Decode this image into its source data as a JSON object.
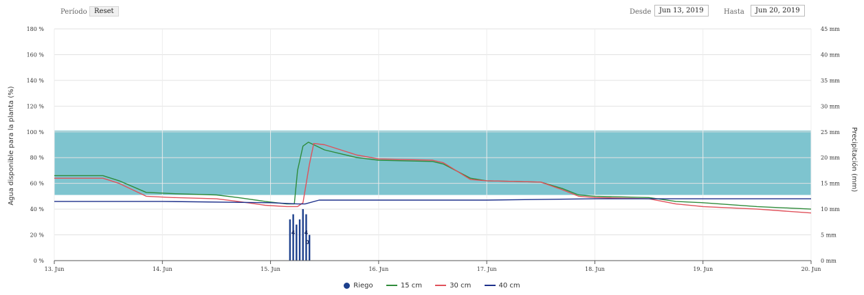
{
  "controls": {
    "period_label": "Período",
    "reset_label": "Reset",
    "from_label": "Desde",
    "from_value": "Jun 13, 2019",
    "to_label": "Hasta",
    "to_value": "Jun 20, 2019"
  },
  "chart_data": {
    "type": "line",
    "ylabel": "Agua disponible para la planta (%)",
    "y2label": "Precipitación (mm)",
    "ylim": [
      0,
      180
    ],
    "y2lim": [
      0,
      45
    ],
    "y_ticks": [
      "0 %",
      "20 %",
      "40 %",
      "60 %",
      "80 %",
      "100 %",
      "120 %",
      "140 %",
      "160 %",
      "180 %"
    ],
    "y2_ticks": [
      "0 mm",
      "5 mm",
      "10 mm",
      "15 mm",
      "20 mm",
      "25 mm",
      "30 mm",
      "35 mm",
      "40 mm",
      "45 mm"
    ],
    "x_ticks": [
      "13. Jun",
      "14. Jun",
      "15. Jun",
      "16. Jun",
      "17. Jun",
      "18. Jun",
      "19. Jun",
      "20. Jun"
    ],
    "x_range": [
      13,
      20
    ],
    "band": {
      "from": 51,
      "to": 101,
      "color": "#7ec4cf"
    },
    "series": [
      {
        "name": "15 cm",
        "color": "#2e8b3a",
        "points": [
          [
            13,
            66
          ],
          [
            13.45,
            66
          ],
          [
            13.6,
            62
          ],
          [
            13.85,
            53
          ],
          [
            14.1,
            52
          ],
          [
            14.5,
            51
          ],
          [
            14.7,
            49
          ],
          [
            14.95,
            46
          ],
          [
            15.15,
            44
          ],
          [
            15.22,
            44
          ],
          [
            15.25,
            70
          ],
          [
            15.3,
            89
          ],
          [
            15.35,
            92
          ],
          [
            15.4,
            90
          ],
          [
            15.5,
            86
          ],
          [
            15.8,
            80
          ],
          [
            16,
            78
          ],
          [
            16.5,
            77
          ],
          [
            16.6,
            75
          ],
          [
            16.85,
            64
          ],
          [
            17,
            62
          ],
          [
            17.5,
            61
          ],
          [
            17.7,
            56
          ],
          [
            17.85,
            51
          ],
          [
            18,
            50
          ],
          [
            18.5,
            49
          ],
          [
            18.75,
            46
          ],
          [
            19,
            45
          ],
          [
            19.5,
            42
          ],
          [
            20,
            40
          ]
        ]
      },
      {
        "name": "30 cm",
        "color": "#e0505a",
        "points": [
          [
            13,
            64
          ],
          [
            13.45,
            64
          ],
          [
            13.6,
            60
          ],
          [
            13.85,
            50
          ],
          [
            14.1,
            49
          ],
          [
            14.5,
            48
          ],
          [
            14.7,
            46
          ],
          [
            14.95,
            43
          ],
          [
            15.15,
            42
          ],
          [
            15.25,
            42
          ],
          [
            15.3,
            45
          ],
          [
            15.36,
            75
          ],
          [
            15.4,
            91
          ],
          [
            15.5,
            90
          ],
          [
            15.8,
            82
          ],
          [
            16,
            79
          ],
          [
            16.5,
            78
          ],
          [
            16.6,
            76
          ],
          [
            16.85,
            63
          ],
          [
            17,
            62
          ],
          [
            17.5,
            61
          ],
          [
            17.7,
            55
          ],
          [
            17.85,
            50
          ],
          [
            18,
            49
          ],
          [
            18.5,
            48
          ],
          [
            18.75,
            44
          ],
          [
            19,
            42
          ],
          [
            19.5,
            40
          ],
          [
            20,
            37
          ]
        ]
      },
      {
        "name": "40 cm",
        "color": "#1c2f8a",
        "points": [
          [
            13,
            46
          ],
          [
            14,
            46
          ],
          [
            15,
            45
          ],
          [
            15.25,
            44
          ],
          [
            15.32,
            44
          ],
          [
            15.45,
            47
          ],
          [
            15.6,
            47
          ],
          [
            16,
            47
          ],
          [
            17,
            47
          ],
          [
            18,
            48
          ],
          [
            19,
            48
          ],
          [
            20,
            48
          ]
        ]
      }
    ],
    "riego": {
      "name": "Riego",
      "color": "#1c3f8c",
      "bars": [
        [
          15.18,
          8
        ],
        [
          15.21,
          9
        ],
        [
          15.24,
          7
        ],
        [
          15.27,
          8
        ],
        [
          15.3,
          10
        ],
        [
          15.33,
          9
        ],
        [
          15.36,
          5
        ]
      ],
      "labels": [
        {
          "x": 15.21,
          "text": "4"
        },
        {
          "x": 15.33,
          "text": "4"
        },
        {
          "x": 15.34,
          "text": "0"
        }
      ]
    },
    "legend": [
      "Riego",
      "15 cm",
      "30 cm",
      "40 cm"
    ]
  }
}
